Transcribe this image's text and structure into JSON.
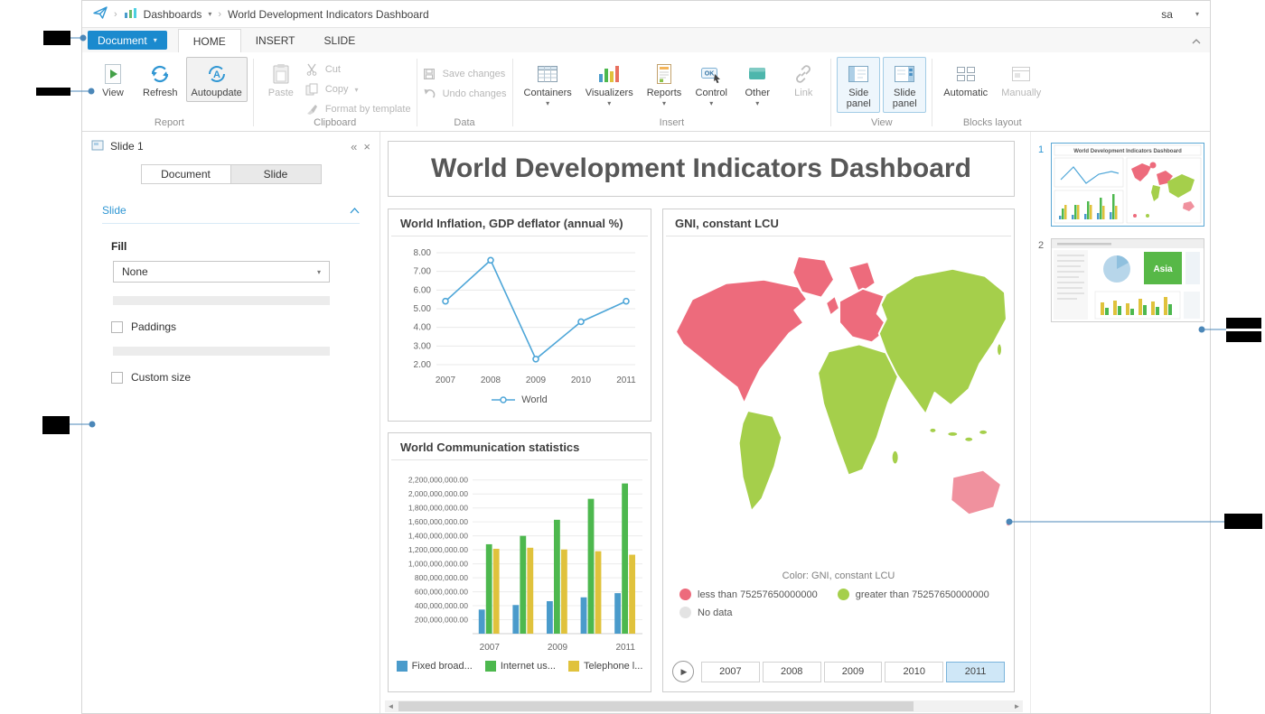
{
  "topbar": {
    "dashboards": "Dashboards",
    "title": "World Development Indicators Dashboard",
    "user": "sa"
  },
  "ribbon": {
    "document": "Document",
    "tabs": [
      {
        "label": "HOME"
      },
      {
        "label": "INSERT"
      },
      {
        "label": "SLIDE"
      }
    ],
    "groups": {
      "report": {
        "label": "Report",
        "view": "View",
        "refresh": "Refresh",
        "autoupdate": "Autoupdate"
      },
      "clipboard": {
        "label": "Clipboard",
        "paste": "Paste",
        "cut": "Cut",
        "copy": "Copy",
        "format": "Format by template"
      },
      "data": {
        "label": "Data",
        "save": "Save changes",
        "undo": "Undo changes"
      },
      "insert": {
        "label": "Insert",
        "containers": "Containers",
        "visualizers": "Visualizers",
        "reports": "Reports",
        "control": "Control",
        "other": "Other",
        "link": "Link"
      },
      "view": {
        "label": "View",
        "side_panel": "Side panel",
        "slide_panel": "Slide panel"
      },
      "blocks": {
        "label": "Blocks layout",
        "automatic": "Automatic",
        "manually": "Manually"
      }
    }
  },
  "sidebar": {
    "header": "Slide 1",
    "tab_document": "Document",
    "tab_slide": "Slide",
    "section": "Slide",
    "fill_label": "Fill",
    "fill_value": "None",
    "paddings_label": "Paddings",
    "custom_size_label": "Custom size"
  },
  "canvas": {
    "title": "World Development Indicators Dashboard"
  },
  "chart_data": [
    {
      "type": "line",
      "title": "World Inflation, GDP deflator (annual %)",
      "x": [
        "2007",
        "2008",
        "2009",
        "2010",
        "2011"
      ],
      "series": [
        {
          "name": "World",
          "color": "#4ea6d8",
          "values": [
            5.4,
            7.6,
            2.3,
            4.3,
            5.4
          ]
        }
      ],
      "ylim": [
        2,
        8
      ],
      "yticks": [
        8,
        7,
        6,
        5,
        4,
        3,
        2
      ],
      "grid": true,
      "legend_position": "bottom"
    },
    {
      "type": "bar",
      "title": "World Communication statistics",
      "categories": [
        "2007",
        "2008",
        "2009",
        "2010",
        "2011"
      ],
      "x_labels_shown": [
        "2007",
        "2009",
        "2011"
      ],
      "series": [
        {
          "name": "Fixed broad...",
          "color": "#4a9bcb",
          "values": [
            345000000,
            410000000,
            465000000,
            520000000,
            580000000
          ]
        },
        {
          "name": "Internet us...",
          "color": "#4db84e",
          "values": [
            1280000000,
            1400000000,
            1630000000,
            1930000000,
            2150000000
          ]
        },
        {
          "name": "Telephone l...",
          "color": "#e0c23c",
          "values": [
            1215000000,
            1230000000,
            1205000000,
            1180000000,
            1130000000
          ]
        }
      ],
      "ylim": [
        0,
        2300000000
      ],
      "ytick_min": 200000000,
      "ytick_max": 2200000000,
      "ytick_step": 200000000,
      "grid": true,
      "legend_position": "bottom"
    },
    {
      "type": "map",
      "title": "GNI, constant LCU",
      "color_caption": "Color: GNI, constant LCU",
      "legend": [
        {
          "label": "less than 75257650000000",
          "color": "#ed6b7c"
        },
        {
          "label": "greater than 75257650000000",
          "color": "#a5cf4b"
        },
        {
          "label": "No data",
          "color": "#e3e3e3"
        }
      ],
      "years": [
        "2007",
        "2008",
        "2009",
        "2010",
        "2011"
      ],
      "selected_year": "2011"
    }
  ],
  "slides": {
    "items": [
      {
        "number": "1",
        "selected": true,
        "preview_title": "World Development Indicators Dashboard"
      },
      {
        "number": "2",
        "selected": false,
        "preview_label": "Asia"
      }
    ]
  }
}
